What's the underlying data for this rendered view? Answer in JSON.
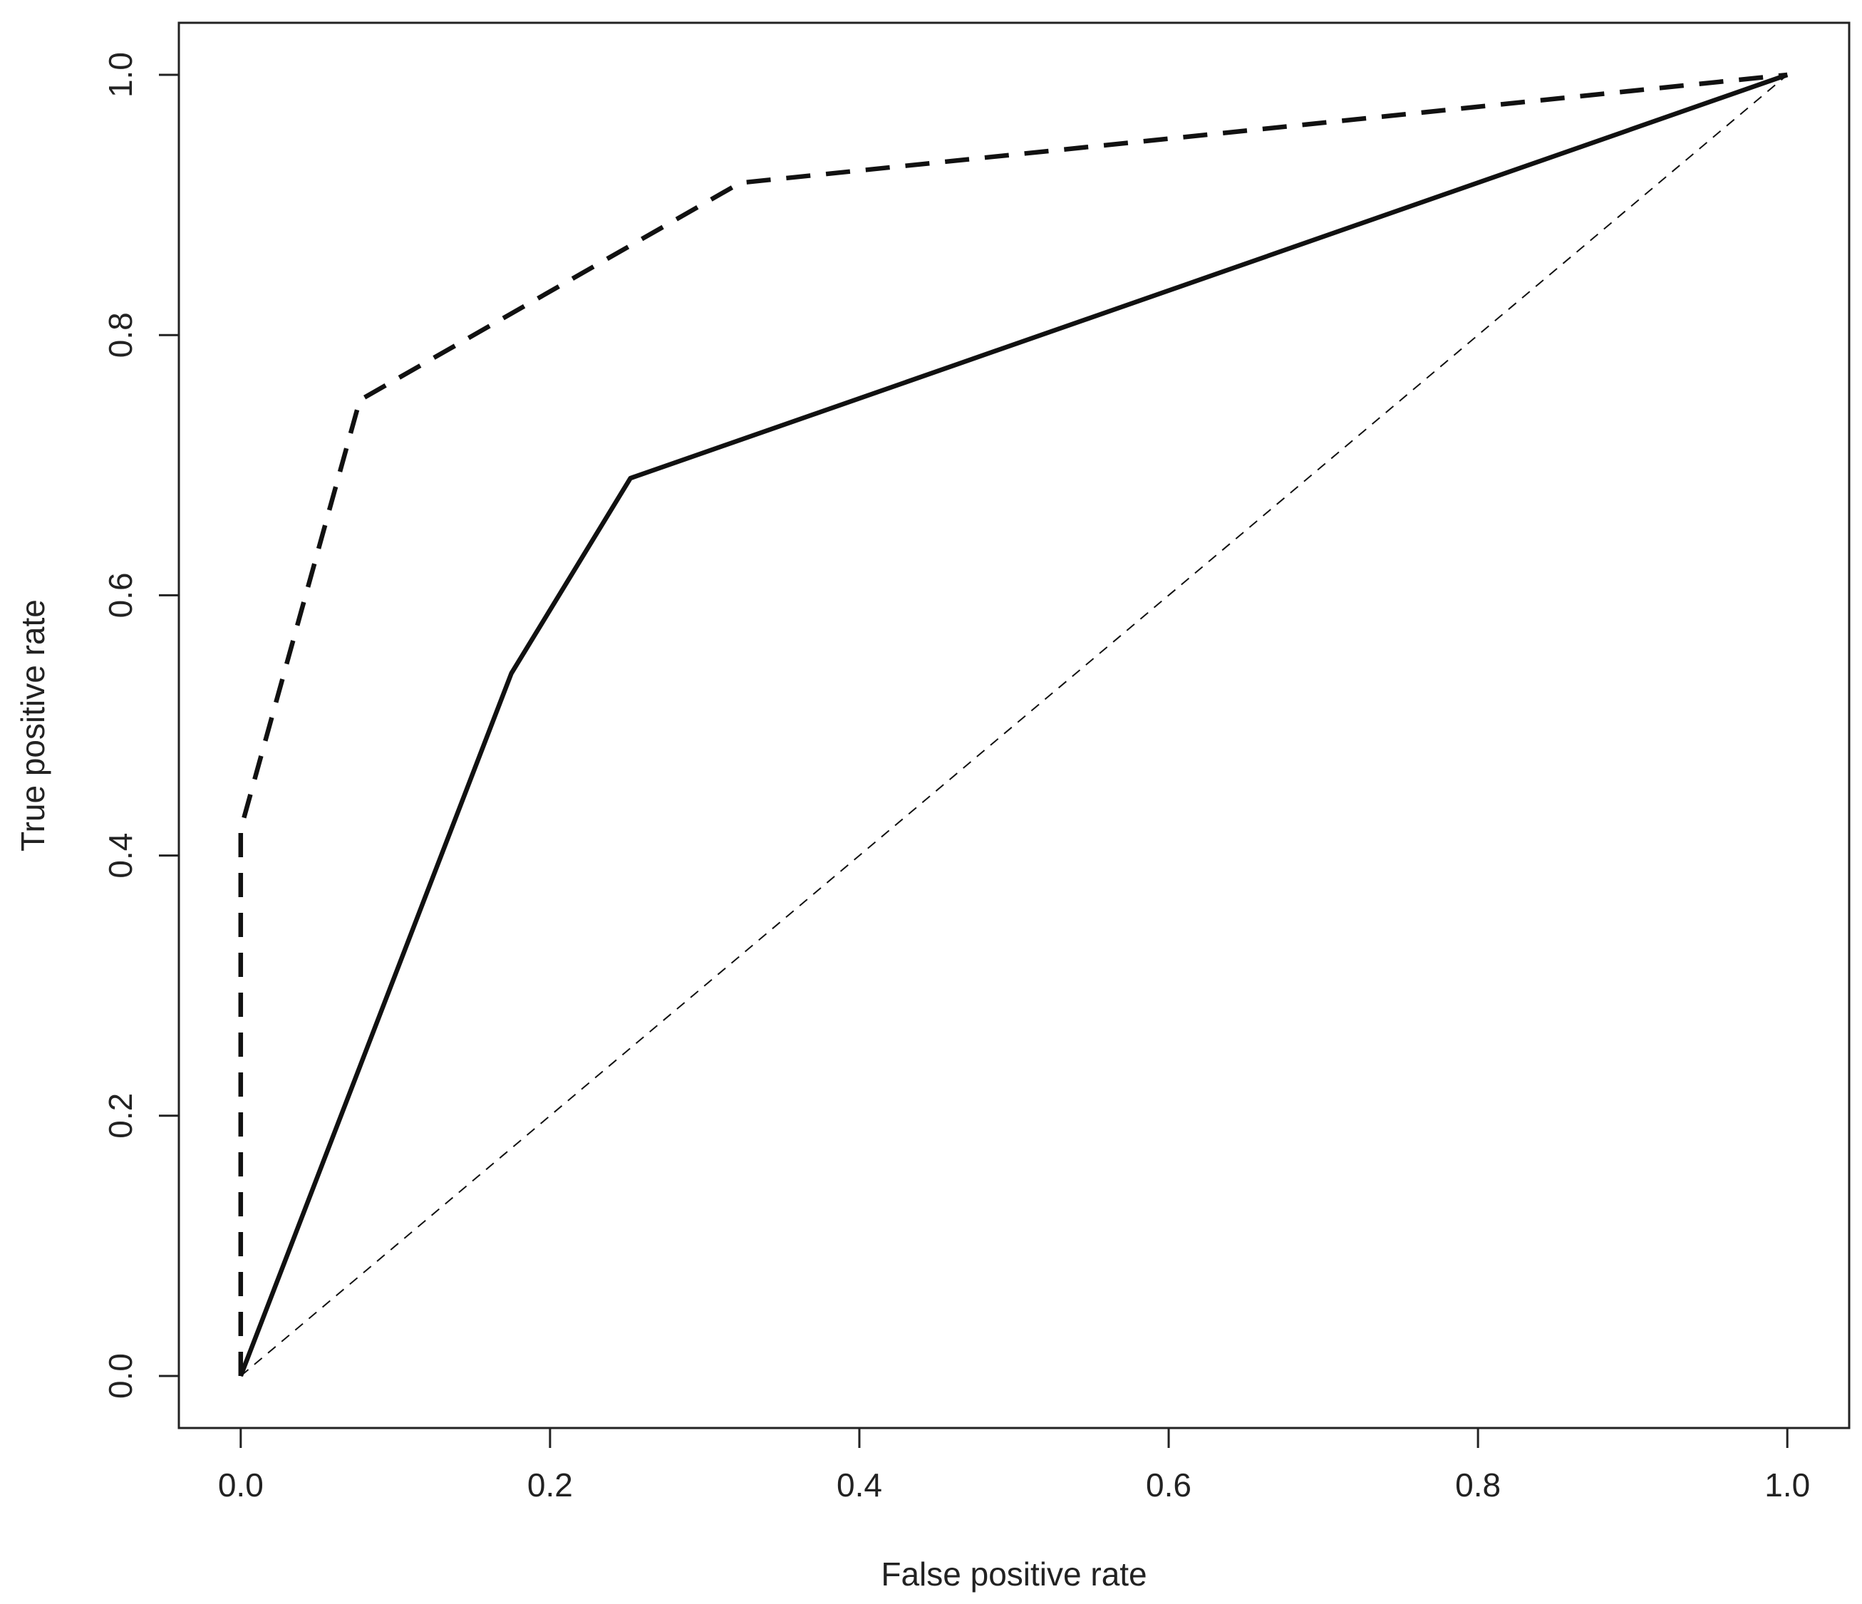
{
  "chart_data": {
    "type": "line",
    "title": "",
    "xlabel": "False positive rate",
    "ylabel": "True positive rate",
    "xlim": [
      -0.04,
      1.04
    ],
    "ylim": [
      -0.04,
      1.04
    ],
    "x_ticks": [
      "0.0",
      "0.2",
      "0.4",
      "0.6",
      "0.8",
      "1.0"
    ],
    "y_ticks": [
      "0.0",
      "0.2",
      "0.4",
      "0.6",
      "0.8",
      "1.0"
    ],
    "grid": false,
    "legend": "none",
    "series": [
      {
        "style": "solid",
        "x": [
          0.0,
          0.175,
          0.252,
          1.0
        ],
        "y": [
          0.0,
          0.54,
          0.69,
          1.0
        ]
      },
      {
        "style": "dashed",
        "x": [
          0.0,
          0.0,
          0.077,
          0.323,
          1.0
        ],
        "y": [
          0.0,
          0.42,
          0.75,
          0.917,
          1.0
        ]
      },
      {
        "style": "thin-dashed",
        "x": [
          0.0,
          1.0
        ],
        "y": [
          0.0,
          1.0
        ]
      }
    ]
  }
}
